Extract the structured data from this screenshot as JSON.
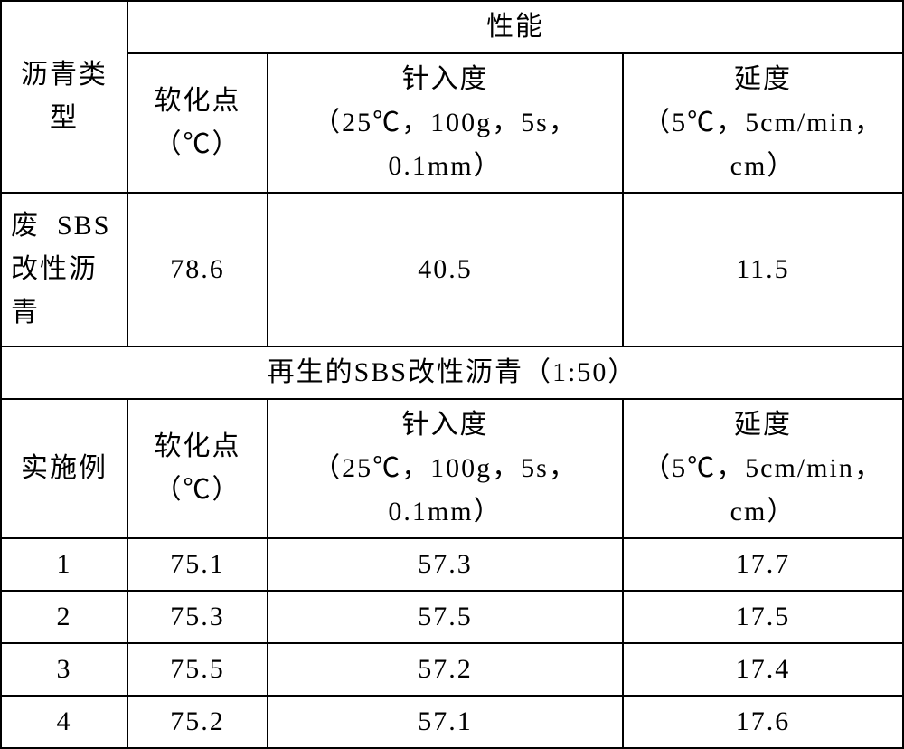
{
  "header": {
    "type_label": "沥青类型",
    "performance_group": "性能",
    "softening_point_label": "软化点（℃）",
    "penetration_label": "针入度（25℃，100g，5s，0.1mm）",
    "ductility_label": "延度（5℃，5cm/min，cm）"
  },
  "waste_row": {
    "label": "废 SBS改性沥青",
    "softening_point": "78.6",
    "penetration": "40.5",
    "ductility": "11.5"
  },
  "section": {
    "title": "再生的SBS改性沥青（1:50）",
    "col0_label": "实施例",
    "softening_point_label": "软化点（℃）",
    "penetration_label": "针入度（25℃，100g，5s，0.1mm）",
    "ductility_label": "延度（5℃，5cm/min，cm）"
  },
  "rows": [
    {
      "example": "1",
      "softening_point": "75.1",
      "penetration": "57.3",
      "ductility": "17.7"
    },
    {
      "example": "2",
      "softening_point": "75.3",
      "penetration": "57.5",
      "ductility": "17.5"
    },
    {
      "example": "3",
      "softening_point": "75.5",
      "penetration": "57.2",
      "ductility": "17.4"
    },
    {
      "example": "4",
      "softening_point": "75.2",
      "penetration": "57.1",
      "ductility": "17.6"
    }
  ],
  "table_meta": {
    "columns": [
      "沥青类型",
      "软化点（℃）",
      "针入度（25℃，100g，5s，0.1mm）",
      "延度（5℃，5cm/min，cm）"
    ],
    "border_color": "#000000",
    "background_color": "#ffffff",
    "text_color": "#000000",
    "font_size_pt": 22,
    "font_family": "SimSun"
  }
}
